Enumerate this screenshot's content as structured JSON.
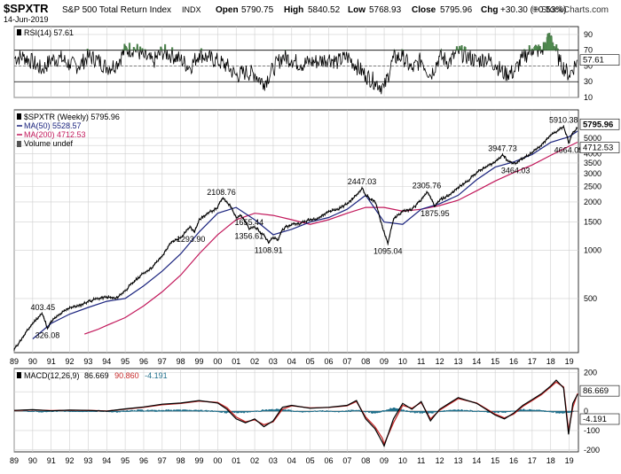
{
  "header": {
    "symbol": "$SPXTR",
    "name": "S&P 500 Total Return Index",
    "exchange": "INDX",
    "date": "14-Jun-2019",
    "open_label": "Open",
    "open": "5790.75",
    "high_label": "High",
    "high": "5840.52",
    "low_label": "Low",
    "low": "5768.93",
    "close_label": "Close",
    "close": "5795.96",
    "chg_label": "Chg",
    "chg": "+30.30 (+0.53%)",
    "watermark": "© StockCharts.com"
  },
  "colors": {
    "price": "#000000",
    "ma50": "#1a237e",
    "ma200": "#c2185b",
    "macd_hist": "#1f6f8b",
    "macd_signal": "#c62828",
    "rsi_fill": "#4e8a4e",
    "grid": "#cfcfcf",
    "text_blue": "#1f4e79"
  },
  "chart_data": [
    {
      "type": "line",
      "panel": "RSI",
      "legend": "RSI(14) 57.61",
      "current_value": 57.61,
      "current_label": "57.61",
      "ylim": [
        10,
        100
      ],
      "yticks": [
        10,
        30,
        50,
        70,
        90
      ],
      "ytick_labels": [
        "10",
        "30",
        "50",
        "70",
        "90"
      ],
      "reference_lines": [
        30,
        70
      ],
      "x": [
        1989.0,
        1989.5,
        1990.0,
        1990.5,
        1991.0,
        1991.5,
        1992.0,
        1992.5,
        1993.0,
        1993.5,
        1994.0,
        1994.5,
        1995.0,
        1995.5,
        1996.0,
        1996.5,
        1997.0,
        1997.5,
        1998.0,
        1998.5,
        1999.0,
        1999.5,
        2000.0,
        2000.5,
        2001.0,
        2001.5,
        2002.0,
        2002.5,
        2003.0,
        2003.5,
        2004.0,
        2004.5,
        2005.0,
        2005.5,
        2006.0,
        2006.5,
        2007.0,
        2007.5,
        2008.0,
        2008.5,
        2009.0,
        2009.5,
        2010.0,
        2010.5,
        2011.0,
        2011.5,
        2012.0,
        2012.5,
        2013.0,
        2013.5,
        2014.0,
        2014.5,
        2015.0,
        2015.5,
        2016.0,
        2016.5,
        2017.0,
        2017.5,
        2018.0,
        2018.5,
        2019.0,
        2019.45
      ],
      "values": [
        60,
        62,
        55,
        45,
        58,
        60,
        52,
        50,
        62,
        58,
        48,
        52,
        70,
        72,
        62,
        55,
        68,
        64,
        58,
        48,
        66,
        60,
        56,
        50,
        38,
        42,
        40,
        28,
        46,
        62,
        58,
        52,
        55,
        56,
        60,
        55,
        62,
        50,
        38,
        30,
        22,
        60,
        62,
        45,
        58,
        38,
        62,
        55,
        68,
        62,
        56,
        60,
        52,
        40,
        42,
        60,
        72,
        68,
        88,
        55,
        38,
        57.61
      ]
    },
    {
      "type": "line",
      "panel": "Price",
      "scale": "log",
      "legend": [
        {
          "label": "$SPXTR (Weekly) 5795.96"
        },
        {
          "label": "MA(50) 5528.57"
        },
        {
          "label": "MA(200) 4712.53"
        },
        {
          "label": "Volume undef"
        }
      ],
      "ylim": [
        230,
        7500
      ],
      "yticks": [
        500,
        1000,
        1500,
        2000,
        2500,
        3000,
        3500,
        4000,
        4500,
        5000
      ],
      "ytick_labels": [
        "500",
        "1000",
        "1500",
        "2000",
        "2500",
        "3000",
        "3500",
        "4000",
        "4500",
        "5000"
      ],
      "last_price_label": "5795.96",
      "ma200_last_label": "4712.53",
      "annotations": [
        {
          "x": 1990.55,
          "y": 403.45,
          "text": "403.45"
        },
        {
          "x": 1990.8,
          "y": 326.08,
          "text": "326.08"
        },
        {
          "x": 1998.55,
          "y": 1293.9,
          "text": "1293.90"
        },
        {
          "x": 2000.2,
          "y": 2108.76,
          "text": "2108.76"
        },
        {
          "x": 2001.7,
          "y": 1655.44,
          "text": "1655.44"
        },
        {
          "x": 2001.7,
          "y": 1356.61,
          "text": "1356.61"
        },
        {
          "x": 2002.75,
          "y": 1108.91,
          "text": "1108.91"
        },
        {
          "x": 2007.8,
          "y": 2447.03,
          "text": "2447.03"
        },
        {
          "x": 2009.2,
          "y": 1095.04,
          "text": "1095.04"
        },
        {
          "x": 2011.3,
          "y": 2305.76,
          "text": "2305.76"
        },
        {
          "x": 2011.75,
          "y": 1875.95,
          "text": "1875.95"
        },
        {
          "x": 2015.4,
          "y": 3947.73,
          "text": "3947.73"
        },
        {
          "x": 2016.1,
          "y": 3464.03,
          "text": "3464.03"
        },
        {
          "x": 2018.7,
          "y": 5910.38,
          "text": "5910.38"
        },
        {
          "x": 2018.97,
          "y": 4664.09,
          "text": "4664.09"
        }
      ],
      "series": [
        {
          "name": "$SPXTR (Weekly)",
          "x": [
            1989.0,
            1989.5,
            1990.0,
            1990.5,
            1990.8,
            1991.0,
            1991.5,
            1992.0,
            1992.5,
            1993.0,
            1993.5,
            1994.0,
            1994.5,
            1995.0,
            1995.5,
            1996.0,
            1996.5,
            1997.0,
            1997.5,
            1998.0,
            1998.5,
            1998.75,
            1999.0,
            1999.5,
            2000.0,
            2000.25,
            2000.5,
            2000.75,
            2001.0,
            2001.25,
            2001.5,
            2001.7,
            2002.0,
            2002.5,
            2002.75,
            2003.0,
            2003.25,
            2003.5,
            2004.0,
            2004.5,
            2005.0,
            2005.5,
            2006.0,
            2006.5,
            2007.0,
            2007.5,
            2007.8,
            2008.0,
            2008.5,
            2008.9,
            2009.2,
            2009.5,
            2010.0,
            2010.5,
            2011.0,
            2011.3,
            2011.75,
            2012.0,
            2012.5,
            2013.0,
            2013.5,
            2014.0,
            2014.5,
            2015.0,
            2015.4,
            2015.7,
            2016.1,
            2016.5,
            2017.0,
            2017.5,
            2018.0,
            2018.7,
            2018.97,
            2019.2,
            2019.45
          ],
          "values": [
            240,
            290,
            350,
            403.45,
            326.08,
            360,
            400,
            440,
            450,
            480,
            500,
            510,
            500,
            560,
            640,
            720,
            790,
            920,
            1120,
            1200,
            1400,
            1293.9,
            1560,
            1700,
            1850,
            2108.76,
            2000,
            1850,
            1600,
            1655.44,
            1500,
            1356.61,
            1400,
            1250,
            1108.91,
            1200,
            1150,
            1350,
            1450,
            1480,
            1550,
            1600,
            1750,
            1800,
            1950,
            2200,
            2447.03,
            2200,
            2000,
            1400,
            1095.04,
            1550,
            1750,
            1800,
            2050,
            2305.76,
            1875.95,
            2050,
            2200,
            2450,
            2700,
            3050,
            3300,
            3550,
            3947.73,
            3600,
            3464.03,
            3750,
            4050,
            4500,
            5200,
            5910.38,
            4664.09,
            5400,
            5795.96
          ]
        },
        {
          "name": "MA(50)",
          "x": [
            1990.0,
            1991.0,
            1992.0,
            1993.0,
            1994.0,
            1995.0,
            1996.0,
            1997.0,
            1998.0,
            1999.0,
            2000.0,
            2001.0,
            2002.0,
            2003.0,
            2004.0,
            2005.0,
            2006.0,
            2007.0,
            2008.0,
            2009.0,
            2010.0,
            2011.0,
            2012.0,
            2013.0,
            2014.0,
            2015.0,
            2016.0,
            2017.0,
            2018.0,
            2019.0,
            2019.45
          ],
          "values": [
            280,
            350,
            400,
            440,
            480,
            500,
            600,
            740,
            950,
            1300,
            1700,
            1850,
            1550,
            1250,
            1350,
            1500,
            1600,
            1800,
            2200,
            1500,
            1450,
            1800,
            1950,
            2200,
            2750,
            3300,
            3550,
            3950,
            4700,
            5100,
            5528.57
          ]
        },
        {
          "name": "MA(200)",
          "x": [
            1992.8,
            1993.5,
            1994.0,
            1995.0,
            1996.0,
            1997.0,
            1998.0,
            1999.0,
            2000.0,
            2001.0,
            2002.0,
            2003.0,
            2004.0,
            2005.0,
            2006.0,
            2007.0,
            2008.0,
            2009.0,
            2010.0,
            2011.0,
            2012.0,
            2013.0,
            2014.0,
            2015.0,
            2016.0,
            2017.0,
            2018.0,
            2019.0,
            2019.45
          ],
          "values": [
            300,
            320,
            340,
            380,
            450,
            550,
            700,
            950,
            1250,
            1550,
            1700,
            1650,
            1550,
            1450,
            1550,
            1700,
            1850,
            1850,
            1750,
            1800,
            1900,
            2050,
            2350,
            2700,
            3050,
            3400,
            3900,
            4450,
            4712.53
          ]
        }
      ]
    },
    {
      "type": "line",
      "panel": "MACD",
      "legend": [
        {
          "label": "MACD(12,26,9)",
          "value": "86.669"
        },
        {
          "label": "",
          "value": "90.860"
        },
        {
          "label": "",
          "value": "-4.191"
        }
      ],
      "ylim": [
        -210,
        220
      ],
      "yticks": [
        -200,
        -100,
        0,
        100,
        200
      ],
      "ytick_labels": [
        "-200",
        "-100",
        "0",
        "100",
        "200"
      ],
      "value_labels": [
        "86.669",
        "-4.191"
      ],
      "series": [
        {
          "name": "MACD(12,26,9)",
          "x": [
            1989.0,
            1990.0,
            1991.0,
            1992.0,
            1993.0,
            1994.0,
            1995.0,
            1996.0,
            1997.0,
            1998.0,
            1999.0,
            2000.0,
            2000.5,
            2001.0,
            2001.5,
            2002.0,
            2002.5,
            2003.0,
            2003.5,
            2004.0,
            2005.0,
            2006.0,
            2007.0,
            2007.5,
            2008.0,
            2008.5,
            2008.9,
            2009.0,
            2009.5,
            2010.0,
            2010.5,
            2011.0,
            2011.5,
            2012.0,
            2013.0,
            2014.0,
            2015.0,
            2015.5,
            2016.0,
            2016.5,
            2017.0,
            2017.5,
            2018.0,
            2018.3,
            2018.7,
            2018.97,
            2019.2,
            2019.45
          ],
          "values": [
            4,
            8,
            2,
            6,
            4,
            0,
            12,
            22,
            36,
            42,
            55,
            42,
            10,
            -40,
            -60,
            -40,
            -80,
            -50,
            20,
            30,
            15,
            20,
            30,
            55,
            -40,
            -90,
            -160,
            -180,
            -40,
            40,
            10,
            50,
            -50,
            10,
            70,
            40,
            -20,
            -40,
            -10,
            30,
            60,
            90,
            130,
            160,
            120,
            -120,
            40,
            86.669
          ]
        },
        {
          "name": "",
          "x": [
            1989.0,
            1990.0,
            1991.0,
            1992.0,
            1993.0,
            1994.0,
            1995.0,
            1996.0,
            1997.0,
            1998.0,
            1999.0,
            2000.0,
            2000.5,
            2001.0,
            2001.5,
            2002.0,
            2002.5,
            2003.0,
            2003.5,
            2004.0,
            2005.0,
            2006.0,
            2007.0,
            2007.5,
            2008.0,
            2008.5,
            2008.9,
            2009.0,
            2009.5,
            2010.0,
            2010.5,
            2011.0,
            2011.5,
            2012.0,
            2013.0,
            2014.0,
            2015.0,
            2015.5,
            2016.0,
            2016.5,
            2017.0,
            2017.5,
            2018.0,
            2018.3,
            2018.7,
            2018.97,
            2019.2,
            2019.45
          ],
          "values": [
            3,
            7,
            3,
            5,
            4,
            1,
            10,
            20,
            33,
            40,
            52,
            45,
            18,
            -30,
            -55,
            -45,
            -70,
            -55,
            10,
            28,
            17,
            19,
            28,
            50,
            -30,
            -80,
            -140,
            -170,
            -60,
            30,
            15,
            45,
            -40,
            5,
            65,
            42,
            -15,
            -35,
            -15,
            25,
            55,
            85,
            125,
            150,
            125,
            -100,
            20,
            90.86
          ]
        },
        {
          "name": "",
          "type": "bar",
          "x": [
            1989.5,
            1990.5,
            1991.5,
            1992.5,
            1993.5,
            1994.5,
            1995.5,
            1996.5,
            1997.5,
            1998.5,
            1999.5,
            2000.5,
            2001.5,
            2002.5,
            2003.5,
            2004.5,
            2005.5,
            2006.5,
            2007.5,
            2008.5,
            2009.5,
            2010.5,
            2011.5,
            2012.5,
            2013.5,
            2014.5,
            2015.5,
            2016.5,
            2017.5,
            2018.5,
            2019.2
          ],
          "values": [
            2,
            -3,
            4,
            -2,
            3,
            -4,
            5,
            4,
            6,
            5,
            4,
            -8,
            -6,
            6,
            10,
            -5,
            3,
            -3,
            6,
            -12,
            18,
            -6,
            -10,
            6,
            5,
            -4,
            -6,
            8,
            5,
            -10,
            -4.191
          ]
        }
      ]
    }
  ],
  "xaxis": {
    "start": 1989.0,
    "end": 2019.5,
    "ticks": [
      1989,
      1990,
      1991,
      1992,
      1993,
      1994,
      1995,
      1996,
      1997,
      1998,
      1999,
      2000,
      2001,
      2002,
      2003,
      2004,
      2005,
      2006,
      2007,
      2008,
      2009,
      2010,
      2011,
      2012,
      2013,
      2014,
      2015,
      2016,
      2017,
      2018,
      2019
    ],
    "labels": [
      "89",
      "90",
      "91",
      "92",
      "93",
      "94",
      "95",
      "96",
      "97",
      "98",
      "99",
      "00",
      "01",
      "02",
      "03",
      "04",
      "05",
      "06",
      "07",
      "08",
      "09",
      "10",
      "11",
      "12",
      "13",
      "14",
      "15",
      "16",
      "17",
      "18",
      "19"
    ]
  }
}
